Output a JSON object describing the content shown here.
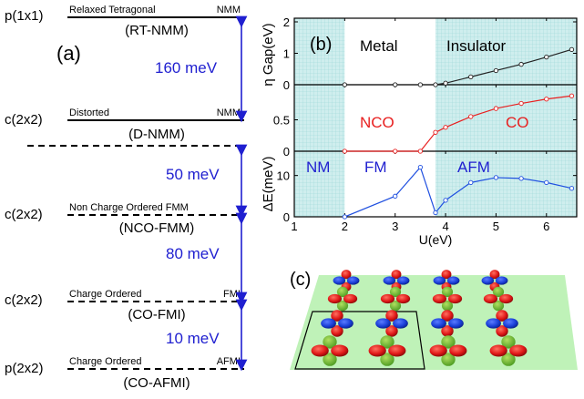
{
  "panel_a": {
    "label": "(a)",
    "levels": [
      {
        "cell": "p(1x1)",
        "desc": "Relaxed Tetragonal",
        "order": "NMM",
        "name": "(RT-NMM)",
        "line": "solid"
      },
      {
        "cell": "c(2x2)",
        "desc": "Distorted",
        "order": "NMM",
        "name": "(D-NMM)",
        "line": "dashed"
      },
      {
        "cell": "c(2x2)",
        "desc": "Non Charge Ordered FMM",
        "order": "",
        "name": "(NCO-FMM)",
        "line": "dashed"
      },
      {
        "cell": "c(2x2)",
        "desc": "Charge Ordered",
        "order": "FMI",
        "name": "(CO-FMI)",
        "line": "dashed"
      },
      {
        "cell": "p(2x2)",
        "desc": "Charge Ordered",
        "order": "AFMI",
        "name": "(CO-AFMI)",
        "line": "dashed"
      }
    ],
    "gaps": [
      "160 meV",
      "50 meV",
      "80 meV",
      "10 meV"
    ],
    "colors": {
      "arrow": "#1f1fd0",
      "gap_text": "#1f1fd0"
    }
  },
  "panel_b": {
    "label": "(b)",
    "xlabel": "U(eV)",
    "ylabel_top": "η  Gap(eV)",
    "ylabel_bottom": "ΔE(meV)",
    "region_top_left": "Metal",
    "region_top_right": "Insulator",
    "region_mid_left": "NCO",
    "region_mid_right": "CO",
    "region_bot": [
      "NM",
      "FM",
      "AFM"
    ],
    "colors": {
      "shade": "#b8e6e6",
      "gap": "#222222",
      "eta": "#e82020",
      "energy": "#2050e0",
      "phase_text_red": "#e82020",
      "phase_text_blue": "#1f1fd0"
    }
  },
  "panel_c": {
    "label": "(c)",
    "colors": {
      "plane": "#b8f0b0",
      "blue_lobe": "#1a3fd8",
      "red_lobe": "#e01818",
      "cyan": "#30b8d0",
      "green": "#40b040"
    }
  },
  "chart_data": [
    {
      "type": "line",
      "title": "",
      "xlabel": "U(eV)",
      "ylabel": "Gap(eV)",
      "xlim": [
        1,
        6.6
      ],
      "ylim": [
        0,
        2
      ],
      "xticks": [
        1,
        2,
        3,
        4,
        5,
        6
      ],
      "yticks": [
        0,
        1,
        2
      ],
      "series": [
        {
          "x": [
            2,
            3,
            3.5,
            3.8,
            4,
            4.5,
            5,
            5.5,
            6,
            6.5
          ],
          "y": [
            0,
            0,
            0,
            0,
            0.05,
            0.25,
            0.45,
            0.65,
            0.88,
            1.12
          ]
        }
      ],
      "shaded_x_ranges": [
        [
          1,
          2
        ],
        [
          3.8,
          6.6
        ]
      ]
    },
    {
      "type": "line",
      "title": "",
      "xlabel": "U(eV)",
      "ylabel": "η",
      "xlim": [
        1,
        6.6
      ],
      "ylim": [
        0,
        1
      ],
      "yticks": [
        0,
        0.5
      ],
      "series": [
        {
          "x": [
            2,
            3,
            3.5,
            3.8,
            4,
            4.5,
            5,
            5.5,
            6,
            6.5
          ],
          "y": [
            0,
            0,
            0,
            0.3,
            0.38,
            0.55,
            0.68,
            0.76,
            0.83,
            0.88
          ]
        }
      ],
      "shaded_x_ranges": [
        [
          1,
          2
        ],
        [
          3.8,
          6.6
        ]
      ]
    },
    {
      "type": "line",
      "title": "",
      "xlabel": "U(eV)",
      "ylabel": "ΔE(meV)",
      "xlim": [
        1,
        6.6
      ],
      "ylim": [
        0,
        15
      ],
      "yticks": [
        0,
        10
      ],
      "series": [
        {
          "x": [
            2,
            3,
            3.5,
            3.8,
            4,
            4.5,
            5,
            5.5,
            6,
            6.5
          ],
          "y": [
            0,
            5,
            12,
            1,
            4,
            8.3,
            9.5,
            9.3,
            8.3,
            6.9
          ]
        }
      ],
      "shaded_x_ranges": [
        [
          1,
          2
        ],
        [
          3.8,
          6.6
        ]
      ]
    }
  ]
}
